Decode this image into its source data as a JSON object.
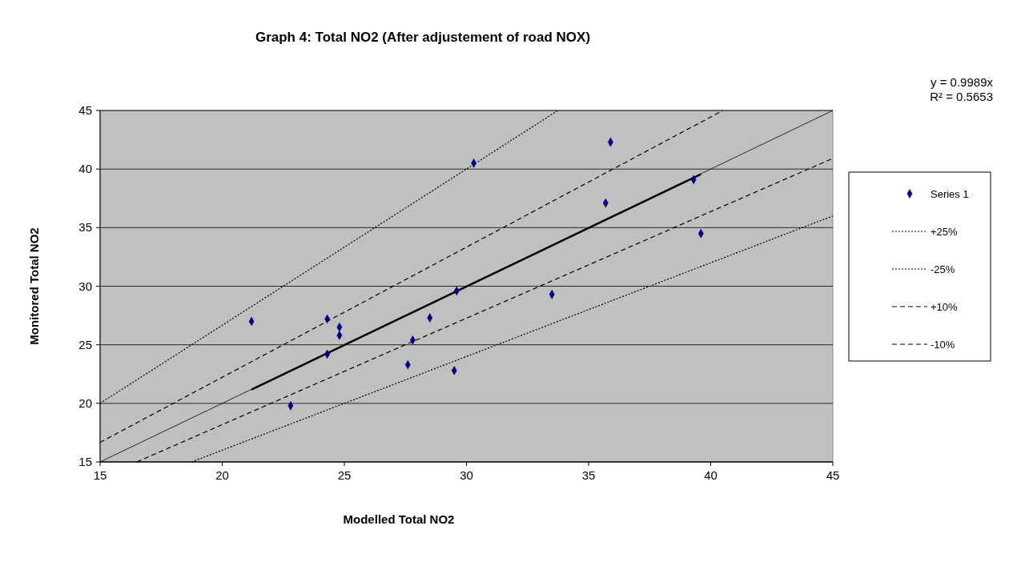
{
  "chart_data": {
    "type": "scatter",
    "title": "Graph 4: Total NO2 (After adjustement of road NOX)",
    "xlabel": "Modelled Total NO2",
    "ylabel": "Monitored Total NO2",
    "xlim": [
      15,
      45
    ],
    "ylim": [
      15,
      45
    ],
    "xticks": [
      15,
      20,
      25,
      30,
      35,
      40,
      45
    ],
    "yticks": [
      15,
      20,
      25,
      30,
      35,
      40,
      45
    ],
    "grid": "y",
    "legend": "right",
    "annotations": [
      "y = 0.9989x",
      "R² = 0.5653"
    ],
    "series": [
      {
        "name": "Series 1",
        "marker": "diamond",
        "color": "#000080",
        "x": [
          21.2,
          22.8,
          24.3,
          24.3,
          24.8,
          24.8,
          27.6,
          27.8,
          28.5,
          29.6,
          29.5,
          30.3,
          33.5,
          35.7,
          35.9,
          39.3,
          39.6
        ],
        "values": [
          27.0,
          19.8,
          27.2,
          24.2,
          26.5,
          25.8,
          23.3,
          25.4,
          27.3,
          29.6,
          22.8,
          40.5,
          29.3,
          37.1,
          42.3,
          39.1,
          34.5
        ]
      },
      {
        "name": "+25%",
        "type": "line",
        "line_style": "dotted",
        "color": "#000000",
        "x": [
          15,
          33.75
        ],
        "values": [
          20,
          45
        ]
      },
      {
        "name": "-25%",
        "type": "line",
        "line_style": "dotted",
        "color": "#000000",
        "x": [
          18.75,
          45
        ],
        "values": [
          15,
          36
        ]
      },
      {
        "name": "+10%",
        "type": "line",
        "line_style": "dashed",
        "color": "#000000",
        "x": [
          15,
          40.5
        ],
        "values": [
          16.67,
          45
        ]
      },
      {
        "name": "-10%",
        "type": "line",
        "line_style": "dashed",
        "color": "#000000",
        "x": [
          16.5,
          45
        ],
        "values": [
          15,
          40.91
        ]
      },
      {
        "type": "line",
        "line_style": "solid",
        "color": "#000000",
        "x": [
          15,
          45
        ],
        "values": [
          15,
          45
        ]
      },
      {
        "type": "line",
        "line_style": "solid",
        "color": "#000000",
        "x": [
          21.2,
          39.6
        ],
        "values": [
          21.18,
          39.56
        ]
      }
    ]
  }
}
